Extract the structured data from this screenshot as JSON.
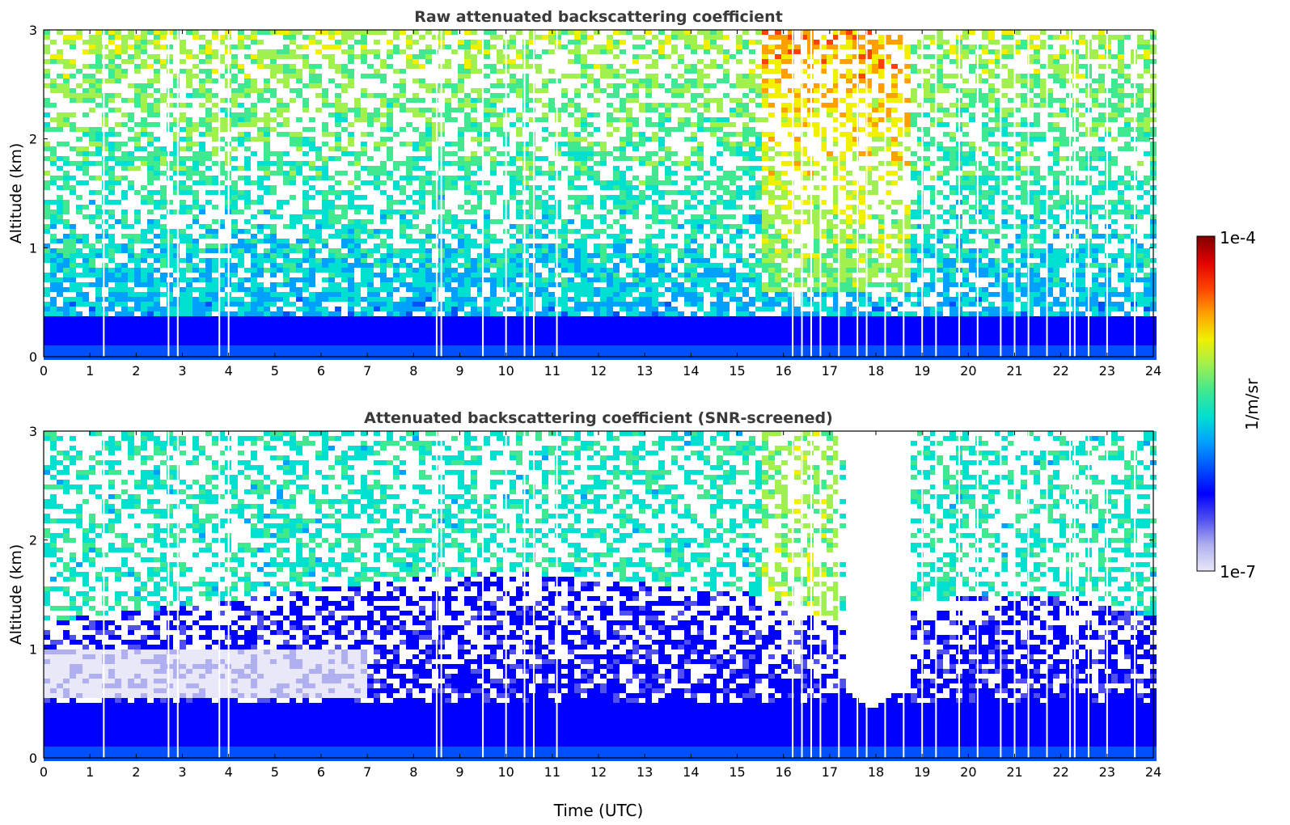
{
  "chart_data": [
    {
      "type": "heatmap",
      "title": "Raw attenuated backscattering coefficient",
      "ylabel": "Altitude (km)",
      "xlabel": "",
      "xlim": [
        0,
        24
      ],
      "ylim": [
        0,
        3
      ],
      "x_ticks": [
        "0",
        "1",
        "2",
        "3",
        "4",
        "5",
        "6",
        "7",
        "8",
        "9",
        "10",
        "11",
        "12",
        "13",
        "14",
        "15",
        "16",
        "17",
        "18",
        "19",
        "20",
        "21",
        "22",
        "23",
        "24"
      ],
      "y_ticks": [
        "0",
        "1",
        "2",
        "3"
      ],
      "approx_fields": {
        "near_surface_layer_top_km": 0.35,
        "high_backscatter_period_utc": [
          15.6,
          18.7
        ],
        "sparse_white_gaps_utc": [
          1.3,
          2.7,
          2.9,
          3.8,
          4.0,
          8.5,
          8.6,
          9.5,
          10.0,
          10.4,
          10.6,
          11.1,
          16.2,
          16.4,
          16.6,
          16.8,
          17.2,
          17.6,
          17.8,
          18.2,
          18.6,
          19.0,
          19.3,
          19.8,
          20.2,
          20.7,
          21.0,
          21.3,
          21.7,
          22.2,
          22.3,
          22.6,
          23.0,
          23.6
        ]
      }
    },
    {
      "type": "heatmap",
      "title": "Attenuated backscattering coefficient (SNR-screened)",
      "ylabel": "Altitude (km)",
      "xlabel": "Time (UTC)",
      "xlim": [
        0,
        24
      ],
      "ylim": [
        0,
        3
      ],
      "x_ticks": [
        "0",
        "1",
        "2",
        "3",
        "4",
        "5",
        "6",
        "7",
        "8",
        "9",
        "10",
        "11",
        "12",
        "13",
        "14",
        "15",
        "16",
        "17",
        "18",
        "19",
        "20",
        "21",
        "22",
        "23",
        "24"
      ],
      "y_ticks": [
        "0",
        "1",
        "2",
        "3"
      ],
      "approx_fields": {
        "boundary_layer_top_km": [
          [
            0,
            1.25
          ],
          [
            2,
            1.35
          ],
          [
            4,
            1.45
          ],
          [
            6,
            1.55
          ],
          [
            8,
            1.65
          ],
          [
            10,
            1.7
          ],
          [
            12,
            1.65
          ],
          [
            14,
            1.55
          ],
          [
            15.5,
            1.5
          ],
          [
            16.5,
            1.3
          ],
          [
            17.5,
            1.25
          ],
          [
            18.5,
            1.3
          ],
          [
            20,
            1.5
          ],
          [
            22,
            1.5
          ],
          [
            24,
            1.3
          ]
        ],
        "blank_region_utc": [
          17.3,
          18.7
        ],
        "blank_region_bottom_km": 0.45
      }
    }
  ],
  "colorbar": {
    "label": "1/m/sr",
    "max_label": "1e-4",
    "min_label": "1e-7",
    "scale": "log",
    "range": [
      1e-07,
      0.0001
    ],
    "colors": [
      "#e8e8f8",
      "#b0b0f0",
      "#5050f0",
      "#0000ff",
      "#0050ff",
      "#00a0ff",
      "#00e0d0",
      "#40e890",
      "#a0f050",
      "#f0f000",
      "#ffa000",
      "#ff4000",
      "#e00000",
      "#800000"
    ]
  }
}
